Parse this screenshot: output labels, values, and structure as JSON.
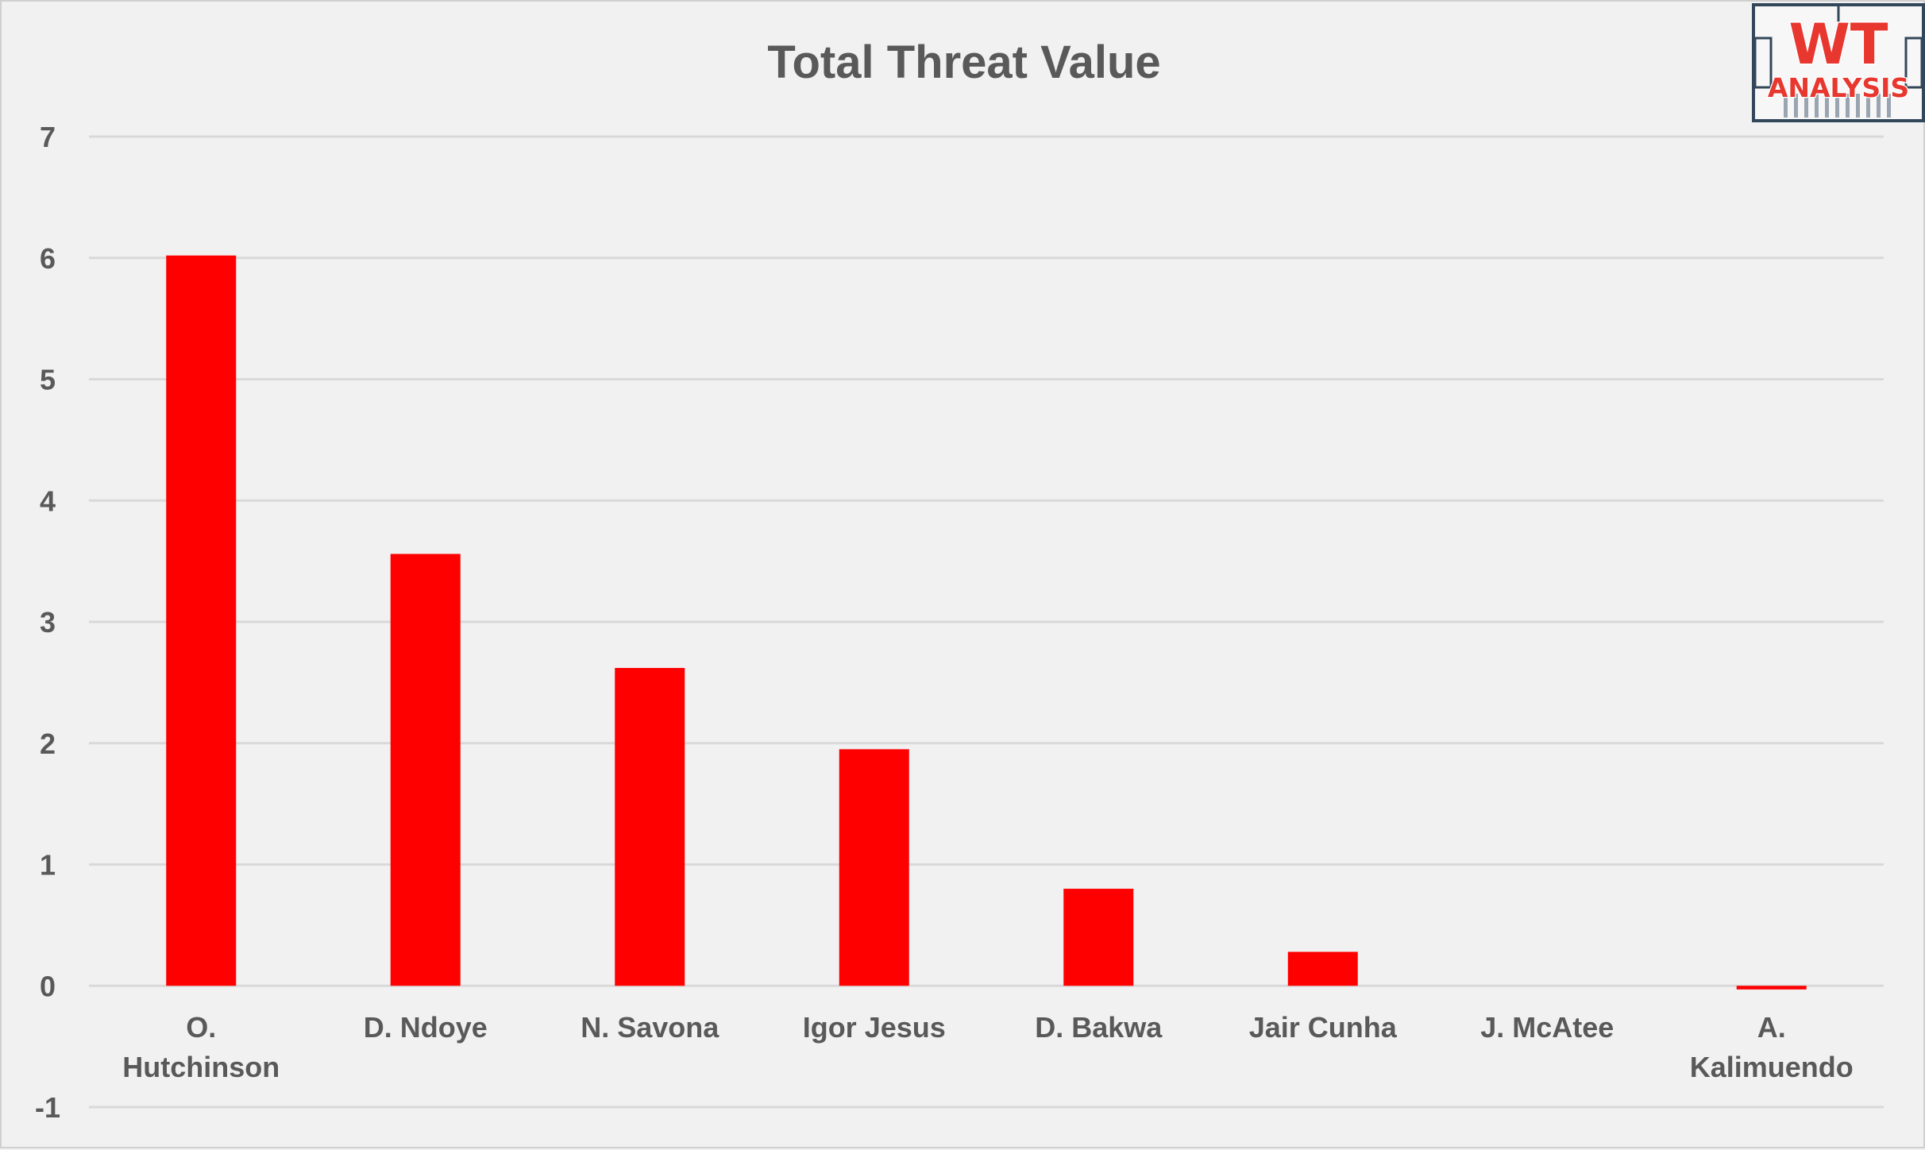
{
  "colors": {
    "bar": "#ff0000",
    "background": "#f1f1f1",
    "grid": "#d9d9d9",
    "text": "#595959",
    "logo_red": "#e8372f",
    "logo_dark": "#33475b"
  },
  "logo": {
    "top": "WT",
    "bottom": "ANALYSIS"
  },
  "chart_data": {
    "type": "bar",
    "title": "Total Threat Value",
    "categories": [
      [
        "O.",
        "Hutchinson"
      ],
      [
        "D. Ndoye"
      ],
      [
        "N. Savona"
      ],
      [
        "Igor Jesus"
      ],
      [
        "D. Bakwa"
      ],
      [
        "Jair Cunha"
      ],
      [
        "J. McAtee"
      ],
      [
        "A.",
        "Kalimuendo"
      ]
    ],
    "values": [
      6.02,
      3.56,
      2.62,
      1.95,
      0.8,
      0.28,
      0.0,
      -0.03
    ],
    "ylim": [
      -1,
      7
    ],
    "yticks": [
      -1,
      0,
      1,
      2,
      3,
      4,
      5,
      6,
      7
    ],
    "grid": true,
    "legend": "none",
    "xlabel": "",
    "ylabel": ""
  }
}
